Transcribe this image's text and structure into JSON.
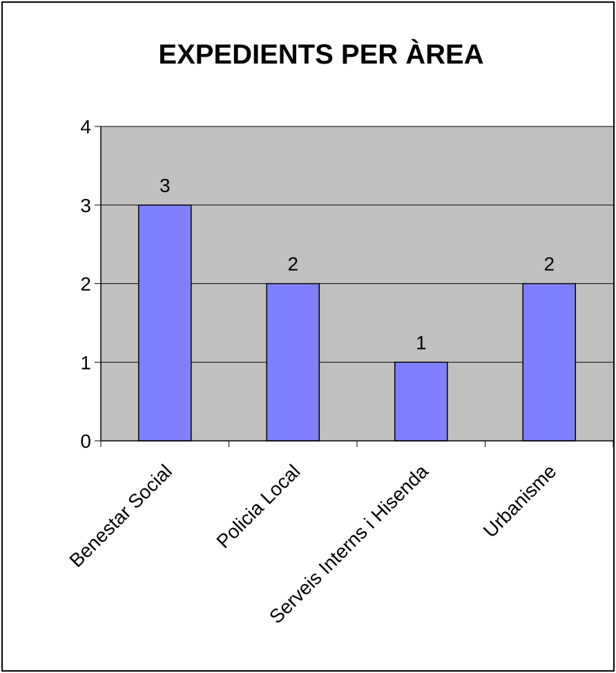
{
  "chart_data": {
    "type": "bar",
    "title": "EXPEDIENTS PER ÀREA",
    "xlabel": "",
    "ylabel": "",
    "categories": [
      "Benestar Social",
      "Policia Local",
      "Serveis Interns i Hisenda",
      "Urbanisme"
    ],
    "values": [
      3,
      2,
      1,
      2
    ],
    "ylim": [
      0,
      4
    ],
    "yticks": [
      0,
      1,
      2,
      3,
      4
    ],
    "grid": true,
    "legend": "none",
    "colors": {
      "bar_fill": "#8080ff",
      "plot_background": "#c0c0c0",
      "axis": "#000000"
    }
  }
}
